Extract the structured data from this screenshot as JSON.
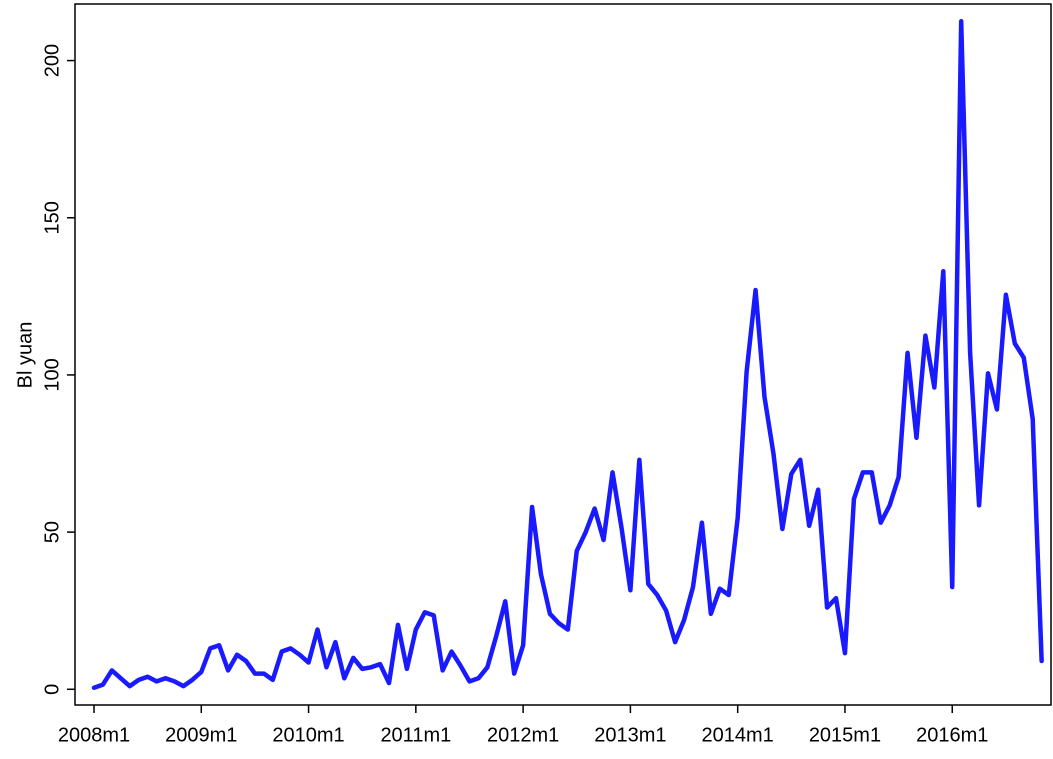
{
  "chart_data": {
    "type": "line",
    "ylabel": "Bl yuan",
    "color": "#1a1aff",
    "categories": [
      "2008m1",
      null,
      null,
      null,
      null,
      null,
      null,
      null,
      null,
      null,
      null,
      null,
      "2009m1",
      null,
      null,
      null,
      null,
      null,
      null,
      null,
      null,
      null,
      null,
      null,
      "2010m1",
      null,
      null,
      null,
      null,
      null,
      null,
      null,
      null,
      null,
      null,
      null,
      "2011m1",
      null,
      null,
      null,
      null,
      null,
      null,
      null,
      null,
      null,
      null,
      null,
      "2012m1",
      null,
      null,
      null,
      null,
      null,
      null,
      null,
      null,
      null,
      null,
      null,
      "2013m1",
      null,
      null,
      null,
      null,
      null,
      null,
      null,
      null,
      null,
      null,
      null,
      "2014m1",
      null,
      null,
      null,
      null,
      null,
      null,
      null,
      null,
      null,
      null,
      null,
      "2015m1",
      null,
      null,
      null,
      null,
      null,
      null,
      null,
      null,
      null,
      null,
      null,
      "2016m1",
      null,
      null,
      null,
      null,
      null,
      null,
      null,
      null,
      null,
      null
    ],
    "values": [
      0.5,
      1.5,
      6,
      3.5,
      1,
      3,
      4,
      2.5,
      3.5,
      2.5,
      1,
      3,
      5.5,
      13,
      14,
      6,
      11,
      9,
      5,
      5,
      3,
      12,
      13,
      11,
      8.5,
      19,
      7,
      15,
      3.5,
      10,
      6.5,
      7,
      8,
      2,
      20.5,
      6.5,
      19,
      24.5,
      23.5,
      6,
      12,
      7.5,
      2.5,
      3.5,
      7,
      17,
      28,
      5,
      14,
      58,
      36.5,
      24,
      21,
      19,
      44,
      50,
      57.5,
      47.5,
      69,
      51.5,
      31.5,
      73,
      33.5,
      30,
      25,
      15,
      22,
      32.5,
      53,
      24,
      32,
      30,
      54.5,
      101,
      127,
      93,
      75,
      51,
      68.5,
      73,
      52,
      63.5,
      26,
      29,
      11.5,
      60.5,
      69,
      69,
      53,
      58.5,
      67.5,
      107,
      80,
      112.5,
      96,
      133,
      32.5,
      212.5,
      107,
      58.5,
      100.5,
      89,
      125.5,
      110,
      105.5,
      86,
      9
    ],
    "ylim": [
      -5,
      218
    ],
    "yticks": [
      0,
      50,
      100,
      150,
      200
    ]
  }
}
